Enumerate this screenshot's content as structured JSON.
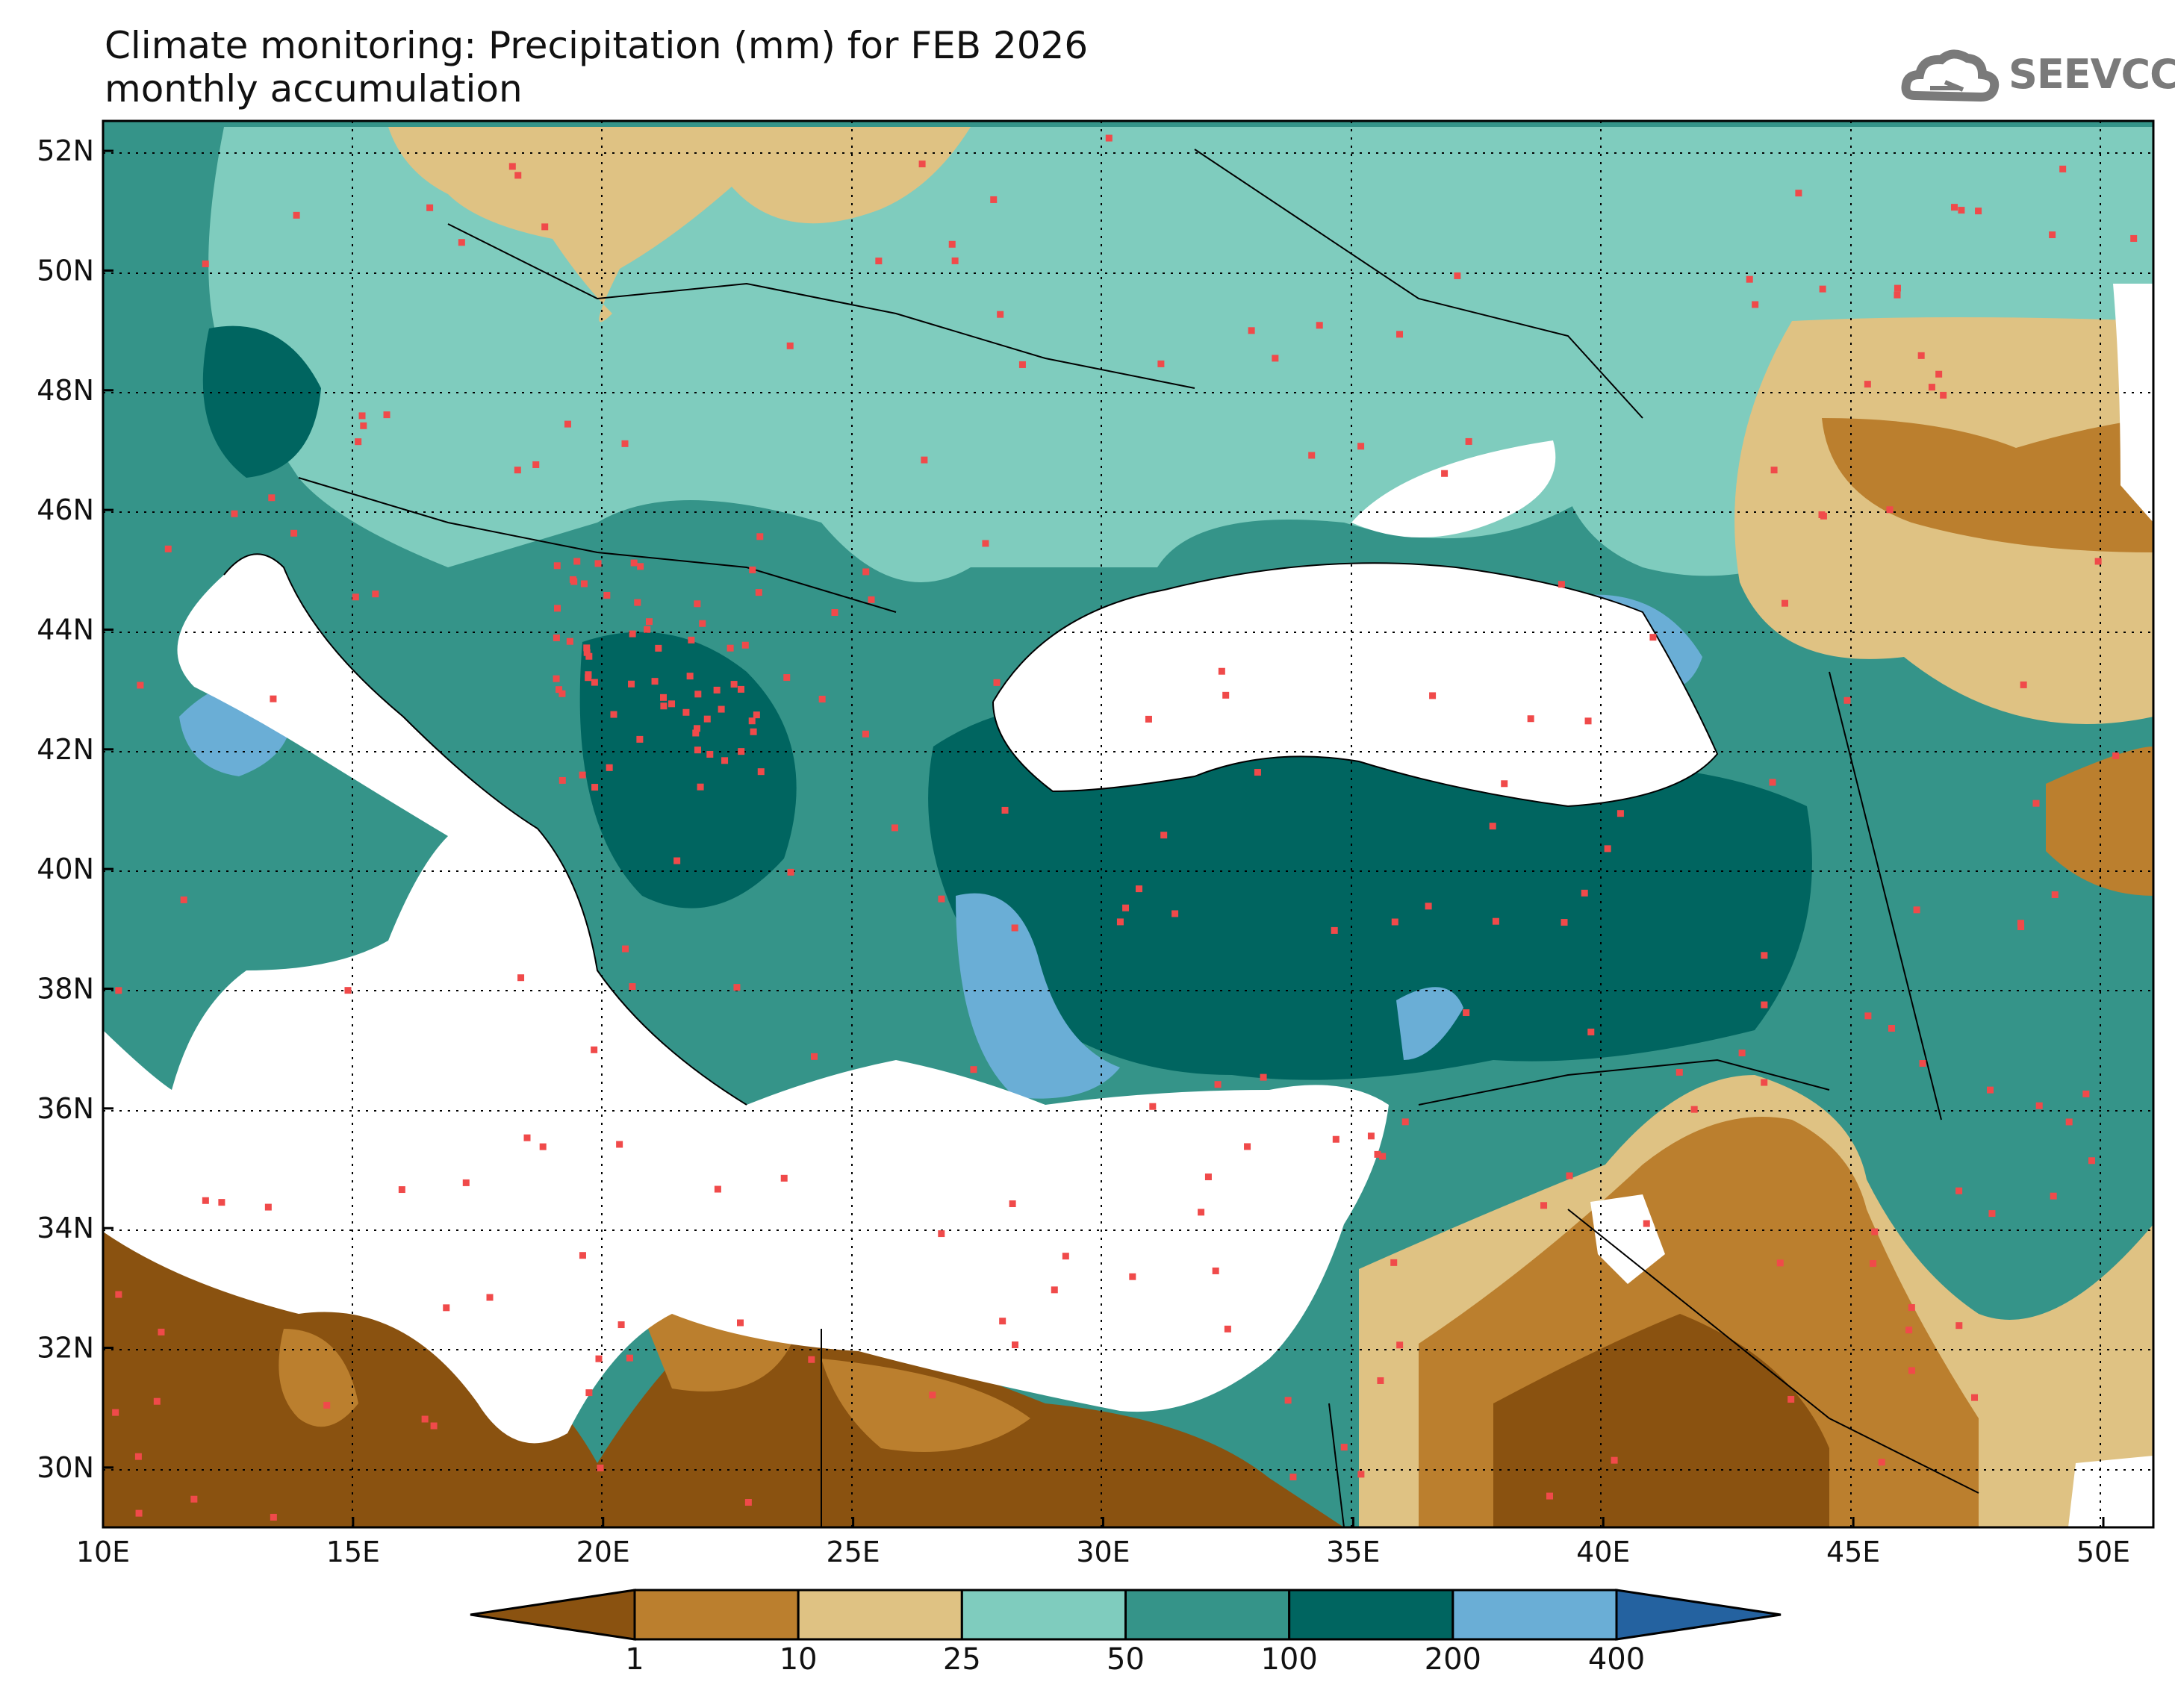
{
  "title": {
    "line1": "Climate monitoring: Precipitation (mm) for FEB 2026",
    "line2": "monthly accumulation"
  },
  "logo": {
    "text": "SEEVCCC",
    "icon": "cloud-icon"
  },
  "map": {
    "lon_range": [
      10,
      51
    ],
    "lat_range": [
      29,
      52.5
    ],
    "lon_ticks": [
      {
        "value": 10,
        "label": "10E"
      },
      {
        "value": 15,
        "label": "15E"
      },
      {
        "value": 20,
        "label": "20E"
      },
      {
        "value": 25,
        "label": "25E"
      },
      {
        "value": 30,
        "label": "30E"
      },
      {
        "value": 35,
        "label": "35E"
      },
      {
        "value": 40,
        "label": "40E"
      },
      {
        "value": 45,
        "label": "45E"
      },
      {
        "value": 50,
        "label": "50E"
      }
    ],
    "lat_ticks": [
      {
        "value": 52,
        "label": "52N"
      },
      {
        "value": 50,
        "label": "50N"
      },
      {
        "value": 48,
        "label": "48N"
      },
      {
        "value": 46,
        "label": "46N"
      },
      {
        "value": 44,
        "label": "44N"
      },
      {
        "value": 42,
        "label": "42N"
      },
      {
        "value": 40,
        "label": "40N"
      },
      {
        "value": 38,
        "label": "38N"
      },
      {
        "value": 36,
        "label": "36N"
      },
      {
        "value": 34,
        "label": "34N"
      },
      {
        "value": 32,
        "label": "32N"
      },
      {
        "value": 30,
        "label": "30N"
      }
    ]
  },
  "colorbar": {
    "colors": [
      "#8a5210",
      "#bb7f2e",
      "#dfc283",
      "#7fccbe",
      "#359489",
      "#006560",
      "#6aaed6",
      "#2462a0"
    ],
    "labels": [
      "1",
      "10",
      "25",
      "50",
      "100",
      "200",
      "400"
    ]
  }
}
